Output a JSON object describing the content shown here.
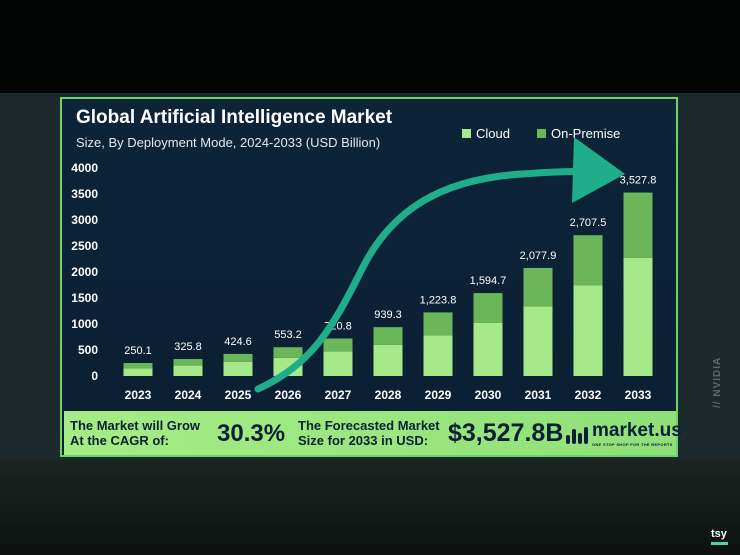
{
  "colors": {
    "cloud": "#a6e88a",
    "on_premise": "#6cb65a",
    "arrow": "#1fae8c"
  },
  "watermark": "// NVIDIA",
  "corner_tag": "tsy",
  "chart_data": {
    "type": "bar",
    "stacked": true,
    "title": "Global Artificial Intelligence Market",
    "subtitle": "Size, By Deployment Mode, 2024-2033 (USD Billion)",
    "categories": [
      "2023",
      "2024",
      "2025",
      "2026",
      "2027",
      "2028",
      "2029",
      "2030",
      "2031",
      "2032",
      "2033"
    ],
    "series": [
      {
        "name": "Cloud",
        "values": [
          150,
          200,
          270,
          350,
          470,
          600,
          780,
          1020,
          1340,
          1740,
          2270
        ]
      },
      {
        "name": "On-Premise",
        "values": [
          100.1,
          125.8,
          154.6,
          203.2,
          250.8,
          339.3,
          443.8,
          574.7,
          737.9,
          967.5,
          1257.8
        ]
      }
    ],
    "totals": [
      "250.1",
      "325.8",
      "424.6",
      "553.2",
      "720.8",
      "939.3",
      "1,223.8",
      "1,594.7",
      "2,077.9",
      "2,707.5",
      "3,527.8"
    ],
    "yticks": [
      "0",
      "500",
      "1000",
      "1500",
      "2000",
      "2500",
      "3000",
      "3500",
      "4000"
    ],
    "ylim": [
      0,
      4000
    ],
    "legend": [
      "Cloud",
      "On-Premise"
    ]
  },
  "footer": {
    "grow_line1": "The Market will Grow",
    "grow_line2": "At the CAGR of:",
    "cagr": "30.3%",
    "forecast_line1": "The Forecasted Market",
    "forecast_line2": "Size for 2033 in USD:",
    "forecast_value": "$3,527.8B",
    "brand": "market.us",
    "brand_tagline": "ONE STOP SHOP FOR THE REPORTS"
  }
}
